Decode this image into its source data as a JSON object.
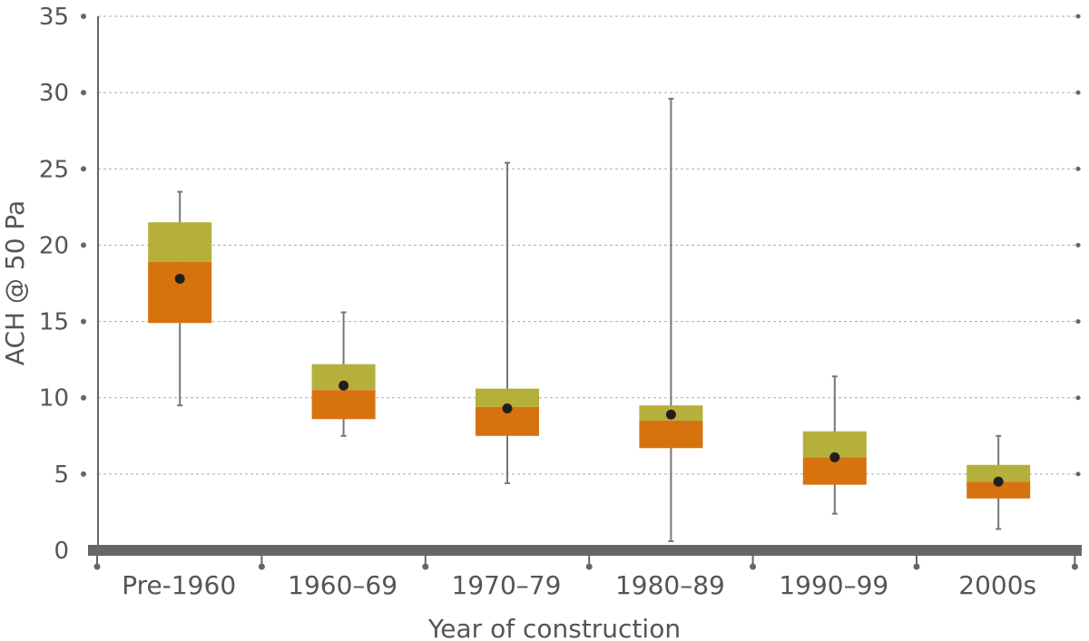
{
  "chart_data": {
    "type": "box",
    "title": "",
    "xlabel": "Year of construction",
    "ylabel": "ACH @ 50 Pa",
    "ylim": [
      0,
      35
    ],
    "yticks": [
      "0",
      "5",
      "10",
      "15",
      "20",
      "25",
      "30",
      "35"
    ],
    "grid": true,
    "categories": [
      "Pre-1960",
      "1960–69",
      "1970–79",
      "1980–89",
      "1990–99",
      "2000s"
    ],
    "boxes": [
      {
        "min": 9.5,
        "q1": 14.9,
        "median": 18.9,
        "q3": 21.5,
        "max": 23.5,
        "mean": 17.8
      },
      {
        "min": 7.5,
        "q1": 8.6,
        "median": 10.5,
        "q3": 12.2,
        "max": 15.6,
        "mean": 10.8
      },
      {
        "min": 4.4,
        "q1": 7.5,
        "median": 9.4,
        "q3": 10.6,
        "max": 25.4,
        "mean": 9.3
      },
      {
        "min": 0.6,
        "q1": 6.7,
        "median": 8.5,
        "q3": 9.5,
        "max": 29.6,
        "mean": 8.9
      },
      {
        "min": 2.4,
        "q1": 4.3,
        "median": 6.1,
        "q3": 7.8,
        "max": 11.4,
        "mean": 6.1
      },
      {
        "min": 1.4,
        "q1": 3.4,
        "median": 4.5,
        "q3": 5.6,
        "max": 7.5,
        "mean": 4.5
      }
    ],
    "colors": {
      "lower_box": "#D6730F",
      "upper_box": "#B5B03C",
      "mean_marker": "#231F20",
      "whisker": "#777777",
      "axis": "#666666",
      "grid": "#AAAAAA"
    }
  }
}
